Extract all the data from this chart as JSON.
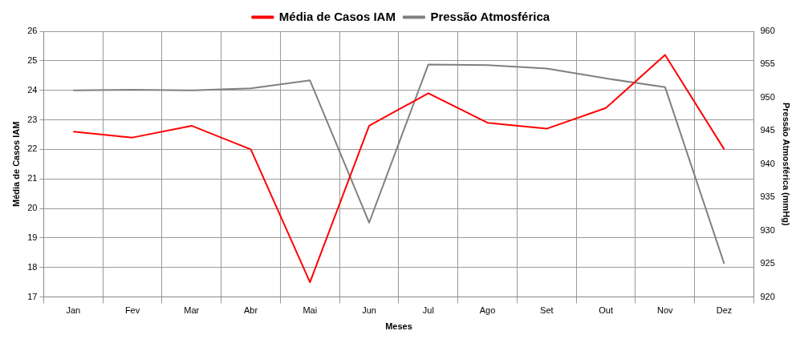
{
  "chart_data": {
    "type": "line",
    "xlabel": "Meses",
    "ylabel": "Média de Casos IAM",
    "y2label": "Pressão Atmosférica (mmHg)",
    "categories": [
      "Jan",
      "Fev",
      "Mar",
      "Abr",
      "Mai",
      "Jun",
      "Jul",
      "Ago",
      "Set",
      "Out",
      "Nov",
      "Dez"
    ],
    "series": [
      {
        "name": "Média de Casos IAM",
        "color": "#ff0000",
        "values": [
          22.6,
          22.4,
          22.8,
          22.0,
          17.5,
          22.8,
          23.9,
          22.9,
          22.7,
          23.4,
          25.2,
          22.0
        ]
      },
      {
        "name": "Pressão Atmosférica",
        "color": "#808080",
        "axis": "y2",
        "values": [
          951.1,
          951.2,
          951.1,
          951.4,
          952.6,
          931.2,
          955.0,
          954.9,
          954.4,
          952.9,
          951.6,
          925.0
        ]
      }
    ],
    "ylim": [
      17,
      26
    ],
    "yticks": [
      17,
      18,
      19,
      20,
      21,
      22,
      23,
      24,
      25,
      26
    ],
    "y2lim": [
      920,
      960
    ],
    "y2ticks": [
      920,
      925,
      930,
      935,
      940,
      945,
      950,
      955,
      960
    ],
    "grid": true,
    "legend": "top",
    "marker": "none",
    "line_style": "solid"
  }
}
